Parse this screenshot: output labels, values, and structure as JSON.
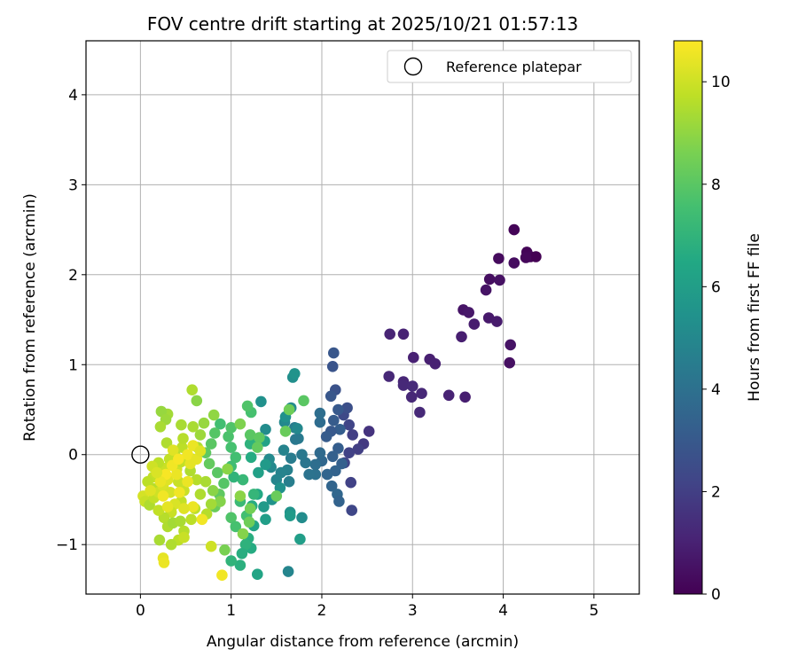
{
  "chart_data": {
    "type": "scatter",
    "title": "FOV centre drift starting at 2025/10/21 01:57:13",
    "xlabel": "Angular distance from reference (arcmin)",
    "ylabel": "Rotation from reference (arcmin)",
    "xlim": [
      -0.6,
      5.5
    ],
    "ylim": [
      -1.55,
      4.6
    ],
    "x_ticks": [
      0,
      1,
      2,
      3,
      4,
      5
    ],
    "y_ticks": [
      -1,
      0,
      1,
      2,
      3,
      4
    ],
    "x_tick_labels": [
      "0",
      "1",
      "2",
      "3",
      "4",
      "5"
    ],
    "y_tick_labels": [
      "−1",
      "0",
      "1",
      "2",
      "3",
      "4"
    ],
    "grid": true,
    "legend": {
      "placement": "top-right",
      "entries": [
        "Reference platepar"
      ]
    },
    "reference_point": {
      "x": 0,
      "y": 0,
      "label": "Reference platepar"
    },
    "colorbar": {
      "label": "Hours from first FF file",
      "colormap": "viridis",
      "range": [
        0,
        10.8
      ],
      "ticks": [
        0,
        2,
        4,
        6,
        8,
        10
      ],
      "tick_labels": [
        "0",
        "2",
        "4",
        "6",
        "8",
        "10"
      ]
    },
    "points": [
      {
        "x": 4.12,
        "y": 2.5,
        "c": 0.1
      },
      {
        "x": 4.26,
        "y": 2.25,
        "c": 0.1
      },
      {
        "x": 4.3,
        "y": 2.2,
        "c": 0.15
      },
      {
        "x": 4.36,
        "y": 2.2,
        "c": 0.0
      },
      {
        "x": 4.25,
        "y": 2.19,
        "c": 0.2
      },
      {
        "x": 3.95,
        "y": 2.18,
        "c": 0.3
      },
      {
        "x": 4.12,
        "y": 2.13,
        "c": 0.35
      },
      {
        "x": 3.85,
        "y": 1.95,
        "c": 0.4
      },
      {
        "x": 3.96,
        "y": 1.94,
        "c": 0.5
      },
      {
        "x": 3.81,
        "y": 1.83,
        "c": 0.55
      },
      {
        "x": 3.56,
        "y": 1.61,
        "c": 0.6
      },
      {
        "x": 3.62,
        "y": 1.58,
        "c": 0.7
      },
      {
        "x": 3.84,
        "y": 1.52,
        "c": 0.75
      },
      {
        "x": 3.93,
        "y": 1.48,
        "c": 0.8
      },
      {
        "x": 3.68,
        "y": 1.45,
        "c": 0.85
      },
      {
        "x": 3.54,
        "y": 1.31,
        "c": 0.9
      },
      {
        "x": 4.08,
        "y": 1.22,
        "c": 0.55
      },
      {
        "x": 4.07,
        "y": 1.02,
        "c": 0.45
      },
      {
        "x": 2.75,
        "y": 1.34,
        "c": 1.1
      },
      {
        "x": 2.9,
        "y": 1.34,
        "c": 1.05
      },
      {
        "x": 3.01,
        "y": 1.08,
        "c": 1.0
      },
      {
        "x": 3.19,
        "y": 1.06,
        "c": 0.95
      },
      {
        "x": 3.25,
        "y": 1.01,
        "c": 1.0
      },
      {
        "x": 2.74,
        "y": 0.87,
        "c": 1.2
      },
      {
        "x": 2.9,
        "y": 0.81,
        "c": 1.15
      },
      {
        "x": 2.9,
        "y": 0.77,
        "c": 1.25
      },
      {
        "x": 3.0,
        "y": 0.76,
        "c": 1.3
      },
      {
        "x": 3.1,
        "y": 0.68,
        "c": 1.2
      },
      {
        "x": 3.4,
        "y": 0.66,
        "c": 1.05
      },
      {
        "x": 2.99,
        "y": 0.64,
        "c": 1.2
      },
      {
        "x": 3.58,
        "y": 0.64,
        "c": 0.9
      },
      {
        "x": 3.08,
        "y": 0.47,
        "c": 1.25
      },
      {
        "x": 2.52,
        "y": 0.26,
        "c": 1.6
      },
      {
        "x": 2.46,
        "y": 0.12,
        "c": 1.8
      },
      {
        "x": 2.4,
        "y": 0.06,
        "c": 2.0
      },
      {
        "x": 2.3,
        "y": 0.02,
        "c": 2.1
      },
      {
        "x": 2.25,
        "y": -0.09,
        "c": 2.2
      },
      {
        "x": 2.32,
        "y": -0.31,
        "c": 2.1
      },
      {
        "x": 2.33,
        "y": -0.62,
        "c": 2.3
      },
      {
        "x": 2.34,
        "y": 0.22,
        "c": 2.0
      },
      {
        "x": 2.3,
        "y": 0.33,
        "c": 2.2
      },
      {
        "x": 2.24,
        "y": 0.44,
        "c": 2.4
      },
      {
        "x": 2.28,
        "y": 0.52,
        "c": 2.6
      },
      {
        "x": 2.15,
        "y": 0.72,
        "c": 2.7
      },
      {
        "x": 2.12,
        "y": 0.98,
        "c": 2.8
      },
      {
        "x": 2.13,
        "y": 1.13,
        "c": 2.9
      },
      {
        "x": 2.1,
        "y": 0.65,
        "c": 2.9
      },
      {
        "x": 2.18,
        "y": 0.5,
        "c": 3.0
      },
      {
        "x": 2.13,
        "y": 0.38,
        "c": 3.1
      },
      {
        "x": 2.2,
        "y": 0.28,
        "c": 3.2
      },
      {
        "x": 2.1,
        "y": 0.26,
        "c": 3.0
      },
      {
        "x": 2.05,
        "y": 0.2,
        "c": 3.1
      },
      {
        "x": 2.18,
        "y": 0.07,
        "c": 3.2
      },
      {
        "x": 2.12,
        "y": -0.02,
        "c": 3.3
      },
      {
        "x": 2.22,
        "y": -0.1,
        "c": 3.3
      },
      {
        "x": 2.15,
        "y": -0.18,
        "c": 3.4
      },
      {
        "x": 2.06,
        "y": -0.22,
        "c": 3.5
      },
      {
        "x": 2.11,
        "y": -0.35,
        "c": 3.5
      },
      {
        "x": 2.17,
        "y": -0.44,
        "c": 3.6
      },
      {
        "x": 2.19,
        "y": -0.52,
        "c": 3.4
      },
      {
        "x": 2.0,
        "y": -0.07,
        "c": 3.6
      },
      {
        "x": 1.98,
        "y": 0.02,
        "c": 3.7
      },
      {
        "x": 1.98,
        "y": 0.36,
        "c": 3.8
      },
      {
        "x": 1.98,
        "y": 0.46,
        "c": 3.9
      },
      {
        "x": 1.93,
        "y": -0.11,
        "c": 3.9
      },
      {
        "x": 1.93,
        "y": -0.22,
        "c": 4.0
      },
      {
        "x": 1.86,
        "y": -0.22,
        "c": 4.1
      },
      {
        "x": 1.82,
        "y": -0.09,
        "c": 4.2
      },
      {
        "x": 1.78,
        "y": 0.0,
        "c": 4.3
      },
      {
        "x": 1.74,
        "y": 0.18,
        "c": 4.4
      },
      {
        "x": 1.7,
        "y": 0.3,
        "c": 4.5
      },
      {
        "x": 1.71,
        "y": 0.17,
        "c": 4.3
      },
      {
        "x": 1.66,
        "y": -0.04,
        "c": 4.5
      },
      {
        "x": 1.62,
        "y": -0.17,
        "c": 4.7
      },
      {
        "x": 1.64,
        "y": -0.3,
        "c": 4.6
      },
      {
        "x": 1.55,
        "y": -0.2,
        "c": 4.8
      },
      {
        "x": 1.5,
        "y": -0.28,
        "c": 4.9
      },
      {
        "x": 1.44,
        "y": -0.14,
        "c": 5.0
      },
      {
        "x": 1.42,
        "y": -0.05,
        "c": 5.1
      },
      {
        "x": 1.58,
        "y": 0.05,
        "c": 4.8
      },
      {
        "x": 1.59,
        "y": 0.36,
        "c": 5.0
      },
      {
        "x": 1.66,
        "y": 0.52,
        "c": 5.2
      },
      {
        "x": 1.68,
        "y": 0.86,
        "c": 5.3
      },
      {
        "x": 1.7,
        "y": 0.9,
        "c": 5.5
      },
      {
        "x": 1.73,
        "y": 0.29,
        "c": 5.0
      },
      {
        "x": 1.6,
        "y": 0.42,
        "c": 5.4
      },
      {
        "x": 1.63,
        "y": -1.3,
        "c": 4.9
      },
      {
        "x": 1.38,
        "y": 0.28,
        "c": 5.2
      },
      {
        "x": 1.33,
        "y": 0.59,
        "c": 5.4
      },
      {
        "x": 1.54,
        "y": -0.37,
        "c": 5.4
      },
      {
        "x": 1.45,
        "y": -0.5,
        "c": 5.5
      },
      {
        "x": 1.78,
        "y": -0.7,
        "c": 5.2
      },
      {
        "x": 1.65,
        "y": -0.64,
        "c": 5.5
      },
      {
        "x": 1.65,
        "y": -0.68,
        "c": 5.8
      },
      {
        "x": 1.76,
        "y": -0.94,
        "c": 6.0
      },
      {
        "x": 1.36,
        "y": -0.58,
        "c": 5.8
      },
      {
        "x": 1.38,
        "y": -0.72,
        "c": 6.0
      },
      {
        "x": 1.38,
        "y": -0.11,
        "c": 5.8
      },
      {
        "x": 1.3,
        "y": -0.2,
        "c": 6.1
      },
      {
        "x": 1.37,
        "y": 0.15,
        "c": 6.2
      },
      {
        "x": 1.29,
        "y": 0.13,
        "c": 6.4
      },
      {
        "x": 1.22,
        "y": -0.03,
        "c": 6.6
      },
      {
        "x": 1.21,
        "y": 0.12,
        "c": 6.9
      },
      {
        "x": 1.29,
        "y": -0.44,
        "c": 6.5
      },
      {
        "x": 1.23,
        "y": -0.57,
        "c": 6.6
      },
      {
        "x": 1.25,
        "y": -0.79,
        "c": 6.3
      },
      {
        "x": 1.19,
        "y": -0.93,
        "c": 6.7
      },
      {
        "x": 1.22,
        "y": -1.04,
        "c": 6.6
      },
      {
        "x": 1.29,
        "y": -1.33,
        "c": 6.3
      },
      {
        "x": 1.16,
        "y": -1.0,
        "c": 6.9
      },
      {
        "x": 1.12,
        "y": -1.1,
        "c": 6.7
      },
      {
        "x": 1.1,
        "y": -1.23,
        "c": 6.8
      },
      {
        "x": 1.0,
        "y": -1.18,
        "c": 7.0
      },
      {
        "x": 1.25,
        "y": -0.44,
        "c": 7.1
      },
      {
        "x": 1.13,
        "y": -0.28,
        "c": 7.2
      },
      {
        "x": 1.1,
        "y": -0.52,
        "c": 7.3
      },
      {
        "x": 1.03,
        "y": -0.25,
        "c": 7.0
      },
      {
        "x": 1.0,
        "y": -0.13,
        "c": 7.4
      },
      {
        "x": 1.05,
        "y": -0.03,
        "c": 7.5
      },
      {
        "x": 1.0,
        "y": 0.08,
        "c": 7.6
      },
      {
        "x": 0.97,
        "y": 0.2,
        "c": 7.7
      },
      {
        "x": 1.0,
        "y": 0.3,
        "c": 7.8
      },
      {
        "x": 0.88,
        "y": 0.34,
        "c": 7.5
      },
      {
        "x": 0.82,
        "y": 0.24,
        "c": 7.9
      },
      {
        "x": 0.78,
        "y": 0.12,
        "c": 8.0
      },
      {
        "x": 0.72,
        "y": 0.02,
        "c": 8.1
      },
      {
        "x": 0.76,
        "y": -0.1,
        "c": 8.2
      },
      {
        "x": 0.85,
        "y": -0.2,
        "c": 8.0
      },
      {
        "x": 0.92,
        "y": -0.32,
        "c": 7.9
      },
      {
        "x": 0.87,
        "y": -0.44,
        "c": 8.1
      },
      {
        "x": 0.82,
        "y": -0.58,
        "c": 8.3
      },
      {
        "x": 1.0,
        "y": -0.7,
        "c": 7.8
      },
      {
        "x": 1.05,
        "y": -0.8,
        "c": 7.6
      },
      {
        "x": 1.17,
        "y": -0.68,
        "c": 7.5
      },
      {
        "x": 1.22,
        "y": 0.47,
        "c": 7.6
      },
      {
        "x": 1.18,
        "y": 0.54,
        "c": 7.8
      },
      {
        "x": 1.21,
        "y": 0.22,
        "c": 8.0
      },
      {
        "x": 1.31,
        "y": 0.19,
        "c": 8.1
      },
      {
        "x": 1.29,
        "y": 0.08,
        "c": 8.2
      },
      {
        "x": 1.6,
        "y": 0.26,
        "c": 8.3
      },
      {
        "x": 1.64,
        "y": 0.5,
        "c": 8.4
      },
      {
        "x": 1.8,
        "y": 0.6,
        "c": 8.0
      },
      {
        "x": 1.5,
        "y": -0.46,
        "c": 8.3
      },
      {
        "x": 1.21,
        "y": -0.6,
        "c": 8.5
      },
      {
        "x": 1.2,
        "y": -0.75,
        "c": 8.4
      },
      {
        "x": 1.13,
        "y": -0.88,
        "c": 8.8
      },
      {
        "x": 1.1,
        "y": 0.34,
        "c": 8.7
      },
      {
        "x": 1.1,
        "y": -0.46,
        "c": 8.9
      },
      {
        "x": 0.96,
        "y": -0.16,
        "c": 8.9
      },
      {
        "x": 0.93,
        "y": -1.06,
        "c": 8.6
      },
      {
        "x": 0.88,
        "y": -0.52,
        "c": 8.8
      },
      {
        "x": 0.8,
        "y": -0.4,
        "c": 8.9
      },
      {
        "x": 0.62,
        "y": 0.6,
        "c": 8.9
      },
      {
        "x": 0.81,
        "y": 0.44,
        "c": 9.0
      },
      {
        "x": 0.7,
        "y": 0.35,
        "c": 9.1
      },
      {
        "x": 0.66,
        "y": 0.22,
        "c": 9.2
      },
      {
        "x": 0.58,
        "y": 0.31,
        "c": 9.4
      },
      {
        "x": 0.57,
        "y": 0.72,
        "c": 9.5
      },
      {
        "x": 0.63,
        "y": 0.08,
        "c": 9.5
      },
      {
        "x": 0.58,
        "y": -0.05,
        "c": 9.6
      },
      {
        "x": 0.55,
        "y": -0.18,
        "c": 9.5
      },
      {
        "x": 0.62,
        "y": -0.28,
        "c": 9.6
      },
      {
        "x": 0.72,
        "y": -0.3,
        "c": 9.4
      },
      {
        "x": 0.66,
        "y": -0.44,
        "c": 9.5
      },
      {
        "x": 0.78,
        "y": -0.55,
        "c": 9.3
      },
      {
        "x": 0.73,
        "y": -0.66,
        "c": 9.6
      },
      {
        "x": 0.6,
        "y": -0.6,
        "c": 9.7
      },
      {
        "x": 0.56,
        "y": -0.72,
        "c": 9.7
      },
      {
        "x": 0.45,
        "y": -0.52,
        "c": 9.8
      },
      {
        "x": 0.48,
        "y": -0.4,
        "c": 9.9
      },
      {
        "x": 0.42,
        "y": -0.3,
        "c": 9.9
      },
      {
        "x": 0.4,
        "y": -0.16,
        "c": 10.0
      },
      {
        "x": 0.45,
        "y": -0.08,
        "c": 9.8
      },
      {
        "x": 0.46,
        "y": 0.08,
        "c": 9.7
      },
      {
        "x": 0.47,
        "y": 0.18,
        "c": 9.6
      },
      {
        "x": 0.45,
        "y": 0.33,
        "c": 9.4
      },
      {
        "x": 0.3,
        "y": 0.45,
        "c": 9.3
      },
      {
        "x": 0.23,
        "y": 0.48,
        "c": 9.1
      },
      {
        "x": 0.28,
        "y": 0.39,
        "c": 9.2
      },
      {
        "x": 0.22,
        "y": 0.31,
        "c": 9.4
      },
      {
        "x": 0.29,
        "y": 0.13,
        "c": 9.5
      },
      {
        "x": 0.38,
        "y": 0.0,
        "c": 9.6
      },
      {
        "x": 0.32,
        "y": -0.05,
        "c": 9.8
      },
      {
        "x": 0.27,
        "y": -0.15,
        "c": 9.9
      },
      {
        "x": 0.2,
        "y": -0.09,
        "c": 9.7
      },
      {
        "x": 0.13,
        "y": -0.13,
        "c": 10.0
      },
      {
        "x": 0.14,
        "y": -0.25,
        "c": 9.8
      },
      {
        "x": 0.15,
        "y": -0.38,
        "c": 9.6
      },
      {
        "x": 0.08,
        "y": -0.3,
        "c": 9.7
      },
      {
        "x": 0.03,
        "y": -0.46,
        "c": 10.1
      },
      {
        "x": 0.05,
        "y": -0.52,
        "c": 9.9
      },
      {
        "x": 0.1,
        "y": -0.56,
        "c": 9.5
      },
      {
        "x": 0.15,
        "y": -0.48,
        "c": 9.8
      },
      {
        "x": 0.2,
        "y": -0.42,
        "c": 10.0
      },
      {
        "x": 0.25,
        "y": -0.35,
        "c": 10.2
      },
      {
        "x": 0.3,
        "y": -0.28,
        "c": 10.3
      },
      {
        "x": 0.33,
        "y": -0.42,
        "c": 10.1
      },
      {
        "x": 0.38,
        "y": -0.55,
        "c": 10.2
      },
      {
        "x": 0.34,
        "y": -0.64,
        "c": 9.9
      },
      {
        "x": 0.26,
        "y": -0.7,
        "c": 9.6
      },
      {
        "x": 0.2,
        "y": -0.62,
        "c": 9.8
      },
      {
        "x": 0.3,
        "y": -0.8,
        "c": 9.5
      },
      {
        "x": 0.36,
        "y": -0.76,
        "c": 9.3
      },
      {
        "x": 0.44,
        "y": -0.74,
        "c": 9.4
      },
      {
        "x": 0.48,
        "y": -0.85,
        "c": 9.6
      },
      {
        "x": 0.42,
        "y": -0.95,
        "c": 9.7
      },
      {
        "x": 0.48,
        "y": -0.92,
        "c": 9.9
      },
      {
        "x": 0.34,
        "y": -1.0,
        "c": 9.5
      },
      {
        "x": 0.21,
        "y": -0.95,
        "c": 9.4
      },
      {
        "x": 0.25,
        "y": -1.15,
        "c": 10.4
      },
      {
        "x": 0.26,
        "y": -1.2,
        "c": 10.5
      },
      {
        "x": 0.78,
        "y": -1.02,
        "c": 10.0
      },
      {
        "x": 0.9,
        "y": -1.34,
        "c": 10.6
      },
      {
        "x": 0.68,
        "y": -0.72,
        "c": 10.6
      },
      {
        "x": 0.58,
        "y": -0.58,
        "c": 10.5
      },
      {
        "x": 0.52,
        "y": -0.3,
        "c": 10.5
      },
      {
        "x": 0.55,
        "y": -0.1,
        "c": 10.4
      },
      {
        "x": 0.52,
        "y": 0.0,
        "c": 10.6
      },
      {
        "x": 0.58,
        "y": 0.1,
        "c": 10.5
      },
      {
        "x": 0.62,
        "y": -0.05,
        "c": 10.4
      },
      {
        "x": 0.66,
        "y": 0.04,
        "c": 10.3
      },
      {
        "x": 0.4,
        "y": -0.22,
        "c": 10.5
      },
      {
        "x": 0.35,
        "y": -0.12,
        "c": 10.6
      },
      {
        "x": 0.28,
        "y": -0.22,
        "c": 10.7
      },
      {
        "x": 0.22,
        "y": -0.3,
        "c": 10.5
      },
      {
        "x": 0.25,
        "y": -0.46,
        "c": 10.6
      },
      {
        "x": 0.3,
        "y": -0.58,
        "c": 10.4
      },
      {
        "x": 0.43,
        "y": -0.42,
        "c": 10.6
      },
      {
        "x": 0.48,
        "y": -0.6,
        "c": 10.3
      },
      {
        "x": 0.36,
        "y": 0.05,
        "c": 10.3
      },
      {
        "x": 0.42,
        "y": -0.05,
        "c": 10.7
      },
      {
        "x": 0.18,
        "y": -0.2,
        "c": 10.2
      },
      {
        "x": 0.11,
        "y": -0.4,
        "c": 10.3
      }
    ]
  }
}
